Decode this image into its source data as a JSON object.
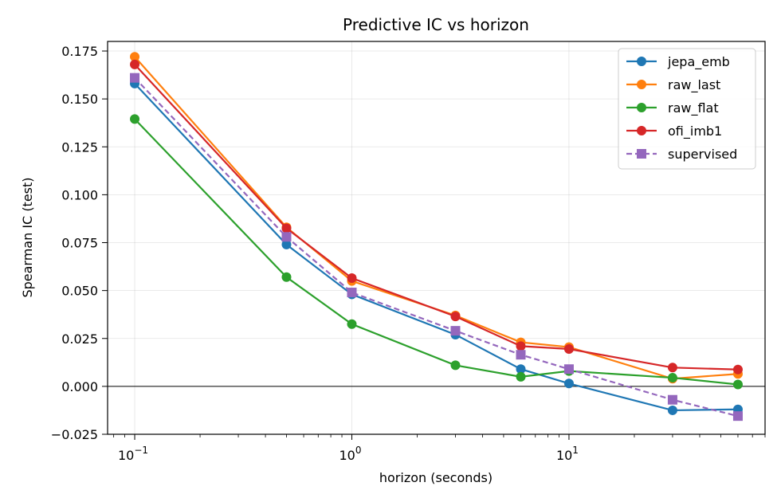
{
  "chart_data": {
    "type": "line",
    "title": "Predictive IC vs horizon",
    "xlabel": "horizon (seconds)",
    "ylabel": "Spearman IC (test)",
    "xscale": "log",
    "xlim": [
      0.075,
      80
    ],
    "ylim": [
      -0.025,
      0.18
    ],
    "x": [
      0.1,
      0.5,
      1,
      3,
      6,
      10,
      30,
      60
    ],
    "x_ticks": [
      {
        "value": 0.1,
        "base": "10",
        "exp": "−1"
      },
      {
        "value": 1,
        "base": "10",
        "exp": "0"
      },
      {
        "value": 10,
        "base": "10",
        "exp": "1"
      }
    ],
    "y_ticks": [
      {
        "value": 0.175,
        "label": "0.175"
      },
      {
        "value": 0.15,
        "label": "0.150"
      },
      {
        "value": 0.125,
        "label": "0.125"
      },
      {
        "value": 0.1,
        "label": "0.100"
      },
      {
        "value": 0.075,
        "label": "0.075"
      },
      {
        "value": 0.05,
        "label": "0.050"
      },
      {
        "value": 0.025,
        "label": "0.025"
      },
      {
        "value": 0,
        "label": "0.000"
      },
      {
        "value": -0.025,
        "label": "−0.025"
      }
    ],
    "grid": true,
    "zero_line": true,
    "legend_position": "top-right",
    "series": [
      {
        "name": "jepa_emb",
        "color": "#1f77b4",
        "marker": "circle",
        "dashed": false,
        "values": [
          0.158,
          0.074,
          0.048,
          0.027,
          0.009,
          0.0015,
          -0.0125,
          -0.012
        ]
      },
      {
        "name": "raw_last",
        "color": "#ff7f0e",
        "marker": "circle",
        "dashed": false,
        "values": [
          0.172,
          0.083,
          0.055,
          0.037,
          0.023,
          0.0205,
          0.004,
          0.0065
        ]
      },
      {
        "name": "raw_flat",
        "color": "#2ca02c",
        "marker": "circle",
        "dashed": false,
        "values": [
          0.1395,
          0.057,
          0.0325,
          0.011,
          0.005,
          0.008,
          0.0045,
          0.001
        ]
      },
      {
        "name": "ofi_imb1",
        "color": "#d62728",
        "marker": "circle",
        "dashed": false,
        "values": [
          0.168,
          0.0825,
          0.0565,
          0.0365,
          0.021,
          0.0195,
          0.0098,
          0.0088
        ]
      },
      {
        "name": "supervised",
        "color": "#9467bd",
        "marker": "square",
        "dashed": true,
        "values": [
          0.161,
          0.078,
          0.049,
          0.029,
          0.0165,
          0.009,
          -0.007,
          -0.0155
        ]
      }
    ]
  }
}
